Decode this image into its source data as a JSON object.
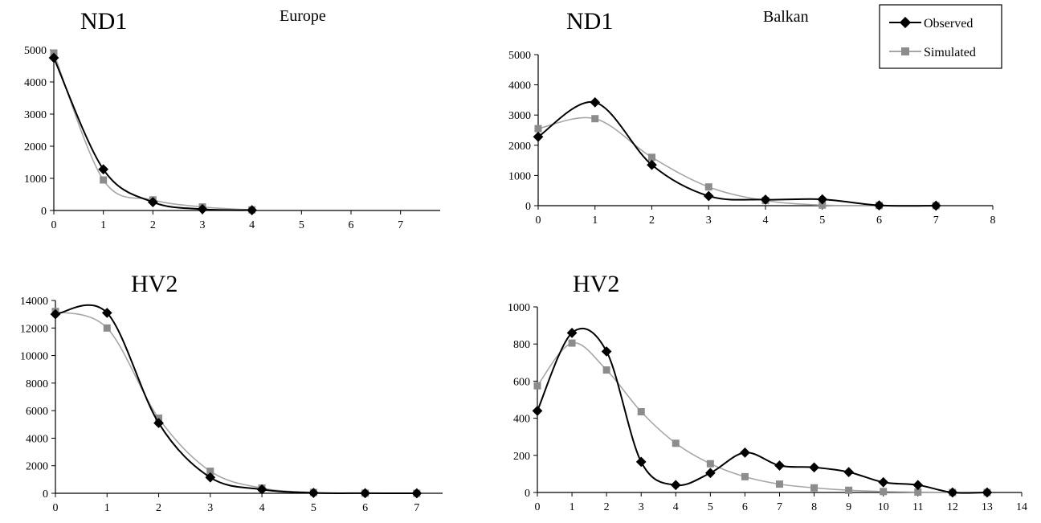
{
  "regions": {
    "left": "Europe",
    "right": "Balkan"
  },
  "legend": {
    "observed": "Observed",
    "simulated": "Simulated"
  },
  "colors": {
    "observed": "#000000",
    "simulated": "#8c8c8c",
    "simulated_line": "#a6a6a6"
  },
  "chart_data": [
    {
      "type": "line",
      "title": "ND1",
      "region": "Europe",
      "x": [
        0,
        1,
        2,
        3,
        4
      ],
      "xticks": [
        0,
        1,
        2,
        3,
        4,
        5,
        6,
        7
      ],
      "xlim": [
        0,
        7.8
      ],
      "ylim": [
        0,
        5000
      ],
      "yticks": [
        0,
        1000,
        2000,
        3000,
        4000,
        5000
      ],
      "series": [
        {
          "name": "Observed",
          "values": [
            4750,
            1280,
            260,
            40,
            10
          ]
        },
        {
          "name": "Simulated",
          "values": [
            4900,
            950,
            330,
            110,
            20
          ]
        }
      ]
    },
    {
      "type": "line",
      "title": "ND1",
      "region": "Balkan",
      "x": [
        0,
        1,
        2,
        3,
        4,
        5,
        6,
        7
      ],
      "xticks": [
        0,
        1,
        2,
        3,
        4,
        5,
        6,
        7,
        8
      ],
      "xlim": [
        0,
        8
      ],
      "ylim": [
        0,
        5000
      ],
      "yticks": [
        0,
        1000,
        2000,
        3000,
        4000,
        5000
      ],
      "series": [
        {
          "name": "Observed",
          "values": [
            2280,
            3420,
            1350,
            320,
            200,
            210,
            10,
            0
          ]
        },
        {
          "name": "Simulated",
          "values": [
            2550,
            2880,
            1600,
            620,
            170,
            20,
            5,
            0
          ]
        }
      ]
    },
    {
      "type": "line",
      "title": "HV2",
      "region": "Europe",
      "x": [
        0,
        1,
        2,
        3,
        4,
        5,
        6,
        7
      ],
      "xticks": [
        0,
        1,
        2,
        3,
        4,
        5,
        6,
        7
      ],
      "xlim": [
        0,
        7.5
      ],
      "ylim": [
        0,
        14000
      ],
      "yticks": [
        0,
        2000,
        4000,
        6000,
        8000,
        10000,
        12000,
        14000
      ],
      "series": [
        {
          "name": "Observed",
          "values": [
            13000,
            13100,
            5100,
            1150,
            280,
            30,
            5,
            0
          ]
        },
        {
          "name": "Simulated",
          "values": [
            13200,
            12000,
            5450,
            1600,
            380,
            60,
            10,
            0
          ]
        }
      ]
    },
    {
      "type": "line",
      "title": "HV2",
      "region": "Balkan",
      "x": [
        0,
        1,
        2,
        3,
        4,
        5,
        6,
        7,
        8,
        9,
        10,
        11,
        12,
        13
      ],
      "xticks": [
        0,
        1,
        2,
        3,
        4,
        5,
        6,
        7,
        8,
        9,
        10,
        11,
        12,
        13,
        14
      ],
      "xlim": [
        0,
        14
      ],
      "ylim": [
        0,
        1000
      ],
      "yticks": [
        0,
        200,
        400,
        600,
        800,
        1000
      ],
      "series": [
        {
          "name": "Observed",
          "values": [
            440,
            860,
            760,
            165,
            40,
            105,
            215,
            145,
            135,
            110,
            55,
            40,
            0,
            0
          ]
        },
        {
          "name": "Simulated",
          "values": [
            575,
            805,
            660,
            435,
            265,
            155,
            85,
            45,
            25,
            12,
            5,
            2,
            0,
            0
          ]
        }
      ]
    }
  ]
}
